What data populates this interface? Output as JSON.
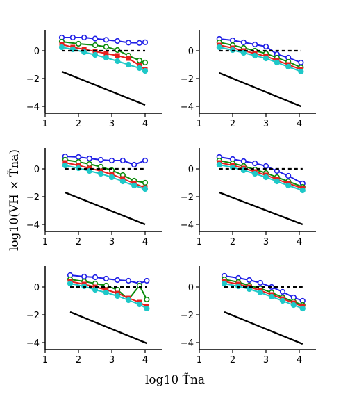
{
  "figure": {
    "xlabel": "log10 T̃na",
    "ylabel": "log10(VH × T̃na)"
  },
  "colors": {
    "blue": "#1f1fe6",
    "green": "#0a8a0a",
    "red": "#e61f1f",
    "cyan": "#1fc8c8",
    "black": "#000000",
    "background": "#ffffff"
  },
  "chart_data": [
    {
      "type": "line",
      "xlim": [
        1,
        4.5
      ],
      "ylim": [
        -4.5,
        1.5
      ],
      "xticks": [
        "1",
        "2",
        "3",
        "4"
      ],
      "yticks": [
        "0",
        "−2",
        "−4"
      ],
      "grid": false,
      "legend": "none",
      "series": [
        {
          "color": "blue",
          "marker": "circle",
          "x": [
            1.5,
            1.83,
            2.17,
            2.5,
            2.83,
            3.17,
            3.5,
            3.83,
            4.0
          ],
          "y": [
            0.95,
            0.95,
            0.95,
            0.87,
            0.78,
            0.7,
            0.58,
            0.56,
            0.61
          ]
        },
        {
          "color": "green",
          "marker": "circle",
          "x": [
            1.5,
            2.0,
            2.5,
            2.83,
            3.17,
            3.5,
            3.83,
            4.0
          ],
          "y": [
            0.65,
            0.5,
            0.4,
            0.28,
            0.05,
            -0.35,
            -0.7,
            -0.85
          ]
        },
        {
          "color": "red",
          "marker": "square",
          "x": [
            1.5,
            1.83,
            2.17,
            2.5,
            2.83,
            3.17,
            3.5,
            3.83,
            4.0
          ],
          "y": [
            0.45,
            0.25,
            0.1,
            -0.05,
            -0.2,
            -0.35,
            -0.55,
            -1.05,
            -1.35
          ]
        },
        {
          "color": "cyan",
          "marker": "circle",
          "x": [
            1.5,
            1.83,
            2.17,
            2.5,
            2.83,
            3.17,
            3.5,
            3.83,
            4.0
          ],
          "y": [
            0.25,
            0.1,
            -0.1,
            -0.3,
            -0.5,
            -0.75,
            -1.0,
            -1.25,
            -1.45
          ]
        },
        {
          "color": "black",
          "style": "dashed",
          "x": [
            1.5,
            4.0
          ],
          "y": [
            0,
            0
          ]
        },
        {
          "color": "black",
          "style": "solid",
          "x": [
            1.5,
            4.0
          ],
          "y": [
            -1.5,
            -3.9
          ]
        }
      ]
    },
    {
      "type": "line",
      "xlim": [
        1,
        4.5
      ],
      "ylim": [
        -4.5,
        1.5
      ],
      "xticks": [
        "1",
        "2",
        "3",
        "4"
      ],
      "yticks": [
        "0",
        "−2",
        "−4"
      ],
      "grid": false,
      "legend": "none",
      "series": [
        {
          "color": "blue",
          "marker": "circle",
          "x": [
            1.6,
            2.0,
            2.33,
            2.67,
            3.0,
            3.33,
            3.67,
            4.05
          ],
          "y": [
            0.85,
            0.75,
            0.6,
            0.45,
            0.3,
            -0.25,
            -0.5,
            -0.85
          ]
        },
        {
          "color": "green",
          "marker": "circle",
          "x": [
            1.6,
            2.0,
            2.33,
            2.67,
            3.0,
            3.33,
            3.67,
            4.05
          ],
          "y": [
            0.6,
            0.4,
            0.2,
            0.0,
            -0.2,
            -0.5,
            -0.8,
            -1.2
          ]
        },
        {
          "color": "red",
          "marker": "square",
          "x": [
            1.6,
            2.0,
            2.33,
            2.67,
            3.0,
            3.33,
            3.67,
            4.05
          ],
          "y": [
            0.4,
            0.2,
            0.0,
            -0.2,
            -0.4,
            -0.7,
            -1.0,
            -1.35
          ]
        },
        {
          "color": "cyan",
          "marker": "circle",
          "x": [
            1.6,
            2.0,
            2.33,
            2.67,
            3.0,
            3.33,
            3.67,
            4.05
          ],
          "y": [
            0.25,
            0.05,
            -0.15,
            -0.35,
            -0.55,
            -0.85,
            -1.15,
            -1.5
          ]
        },
        {
          "color": "black",
          "style": "dashed",
          "x": [
            1.6,
            4.05
          ],
          "y": [
            0,
            0
          ]
        },
        {
          "color": "black",
          "style": "solid",
          "x": [
            1.6,
            4.05
          ],
          "y": [
            -1.6,
            -4.0
          ]
        }
      ]
    },
    {
      "type": "line",
      "xlim": [
        1,
        4.5
      ],
      "ylim": [
        -4.5,
        1.5
      ],
      "xticks": [
        "1",
        "2",
        "3",
        "4"
      ],
      "yticks": [
        "0",
        "−2",
        "−4"
      ],
      "grid": false,
      "legend": "none",
      "series": [
        {
          "color": "blue",
          "marker": "circle",
          "x": [
            1.6,
            2.0,
            2.33,
            2.67,
            3.0,
            3.33,
            3.67,
            4.0
          ],
          "y": [
            0.9,
            0.85,
            0.75,
            0.65,
            0.6,
            0.6,
            0.3,
            0.6
          ]
        },
        {
          "color": "green",
          "marker": "circle",
          "x": [
            1.6,
            2.0,
            2.33,
            2.67,
            3.0,
            3.33,
            3.67,
            4.0
          ],
          "y": [
            0.65,
            0.5,
            0.35,
            0.15,
            -0.1,
            -0.45,
            -0.85,
            -1.0
          ]
        },
        {
          "color": "red",
          "marker": "square",
          "x": [
            1.6,
            2.0,
            2.33,
            2.67,
            3.0,
            3.33,
            3.67,
            4.0
          ],
          "y": [
            0.45,
            0.25,
            0.05,
            -0.15,
            -0.4,
            -0.7,
            -1.05,
            -1.35
          ]
        },
        {
          "color": "cyan",
          "marker": "circle",
          "x": [
            1.6,
            2.0,
            2.33,
            2.67,
            3.0,
            3.33,
            3.67,
            4.0
          ],
          "y": [
            0.25,
            0.05,
            -0.15,
            -0.35,
            -0.6,
            -0.9,
            -1.2,
            -1.45
          ]
        },
        {
          "color": "black",
          "style": "dashed",
          "x": [
            1.6,
            4.0
          ],
          "y": [
            0,
            0
          ]
        },
        {
          "color": "black",
          "style": "solid",
          "x": [
            1.6,
            4.0
          ],
          "y": [
            -1.7,
            -4.0
          ]
        }
      ]
    },
    {
      "type": "line",
      "xlim": [
        1,
        4.5
      ],
      "ylim": [
        -4.5,
        1.5
      ],
      "xticks": [
        "1",
        "2",
        "3",
        "4"
      ],
      "yticks": [
        "0",
        "−2",
        "−4"
      ],
      "grid": false,
      "legend": "none",
      "series": [
        {
          "color": "blue",
          "marker": "circle",
          "x": [
            1.6,
            2.0,
            2.33,
            2.67,
            3.0,
            3.33,
            3.67,
            4.1
          ],
          "y": [
            0.85,
            0.7,
            0.55,
            0.4,
            0.2,
            -0.15,
            -0.5,
            -1.05
          ]
        },
        {
          "color": "green",
          "marker": "circle",
          "x": [
            1.6,
            2.0,
            2.33,
            2.67,
            3.0,
            3.33,
            3.67,
            4.1
          ],
          "y": [
            0.6,
            0.4,
            0.2,
            -0.05,
            -0.3,
            -0.6,
            -0.9,
            -1.3
          ]
        },
        {
          "color": "red",
          "marker": "square",
          "x": [
            1.6,
            2.0,
            2.33,
            2.67,
            3.0,
            3.33,
            3.67,
            4.1
          ],
          "y": [
            0.45,
            0.25,
            0.05,
            -0.2,
            -0.45,
            -0.75,
            -1.05,
            -1.4
          ]
        },
        {
          "color": "cyan",
          "marker": "circle",
          "x": [
            1.6,
            2.0,
            2.33,
            2.67,
            3.0,
            3.33,
            3.67,
            4.1
          ],
          "y": [
            0.3,
            0.1,
            -0.1,
            -0.35,
            -0.6,
            -0.9,
            -1.2,
            -1.55
          ]
        },
        {
          "color": "black",
          "style": "dashed",
          "x": [
            1.6,
            4.1
          ],
          "y": [
            0,
            0
          ]
        },
        {
          "color": "black",
          "style": "solid",
          "x": [
            1.6,
            4.1
          ],
          "y": [
            -1.7,
            -4.0
          ]
        }
      ]
    },
    {
      "type": "line",
      "xlim": [
        1,
        4.5
      ],
      "ylim": [
        -4.5,
        1.5
      ],
      "xticks": [
        "1",
        "2",
        "3",
        "4"
      ],
      "yticks": [
        "0",
        "−2",
        "−4"
      ],
      "grid": false,
      "legend": "none",
      "series": [
        {
          "color": "blue",
          "marker": "circle",
          "x": [
            1.75,
            2.17,
            2.5,
            2.83,
            3.17,
            3.5,
            3.83,
            4.05
          ],
          "y": [
            0.85,
            0.75,
            0.7,
            0.6,
            0.5,
            0.45,
            0.25,
            0.45
          ]
        },
        {
          "color": "green",
          "marker": "circle",
          "x": [
            1.75,
            2.17,
            2.5,
            2.83,
            3.17,
            3.5,
            3.83,
            4.05
          ],
          "y": [
            0.55,
            0.4,
            0.25,
            0.1,
            -0.2,
            -0.9,
            0.1,
            -0.9
          ]
        },
        {
          "color": "red",
          "marker": "square",
          "x": [
            1.75,
            2.17,
            2.5,
            2.83,
            3.17,
            3.5,
            3.83,
            4.05
          ],
          "y": [
            0.4,
            0.2,
            0.0,
            -0.2,
            -0.45,
            -0.8,
            -1.1,
            -1.4
          ]
        },
        {
          "color": "cyan",
          "marker": "circle",
          "x": [
            1.75,
            2.17,
            2.5,
            2.83,
            3.17,
            3.5,
            3.83,
            4.05
          ],
          "y": [
            0.25,
            0.05,
            -0.2,
            -0.4,
            -0.65,
            -0.95,
            -1.25,
            -1.55
          ]
        },
        {
          "color": "black",
          "style": "dashed",
          "x": [
            1.75,
            4.05
          ],
          "y": [
            0,
            0
          ]
        },
        {
          "color": "black",
          "style": "solid",
          "x": [
            1.75,
            4.05
          ],
          "y": [
            -1.8,
            -4.05
          ]
        }
      ]
    },
    {
      "type": "line",
      "xlim": [
        1,
        4.5
      ],
      "ylim": [
        -4.5,
        1.5
      ],
      "xticks": [
        "1",
        "2",
        "3",
        "4"
      ],
      "yticks": [
        "0",
        "−2",
        "−4"
      ],
      "grid": false,
      "legend": "none",
      "series": [
        {
          "color": "blue",
          "marker": "circle",
          "x": [
            1.75,
            2.17,
            2.5,
            2.83,
            3.17,
            3.5,
            3.83,
            4.1
          ],
          "y": [
            0.8,
            0.65,
            0.5,
            0.3,
            0.0,
            -0.35,
            -0.75,
            -1.0
          ]
        },
        {
          "color": "green",
          "marker": "circle",
          "x": [
            1.75,
            2.17,
            2.5,
            2.83,
            3.17,
            3.5,
            3.83,
            4.1
          ],
          "y": [
            0.55,
            0.35,
            0.1,
            -0.1,
            -0.4,
            -0.75,
            -1.05,
            -1.3
          ]
        },
        {
          "color": "red",
          "marker": "square",
          "x": [
            1.75,
            2.17,
            2.5,
            2.83,
            3.17,
            3.5,
            3.83,
            4.1
          ],
          "y": [
            0.4,
            0.2,
            0.0,
            -0.25,
            -0.55,
            -0.85,
            -1.15,
            -1.4
          ]
        },
        {
          "color": "cyan",
          "marker": "circle",
          "x": [
            1.75,
            2.17,
            2.5,
            2.83,
            3.17,
            3.5,
            3.83,
            4.1
          ],
          "y": [
            0.25,
            0.05,
            -0.15,
            -0.4,
            -0.7,
            -1.0,
            -1.3,
            -1.55
          ]
        },
        {
          "color": "black",
          "style": "dashed",
          "x": [
            1.75,
            4.1
          ],
          "y": [
            0,
            0
          ]
        },
        {
          "color": "black",
          "style": "solid",
          "x": [
            1.75,
            4.1
          ],
          "y": [
            -1.8,
            -4.1
          ]
        }
      ]
    }
  ]
}
